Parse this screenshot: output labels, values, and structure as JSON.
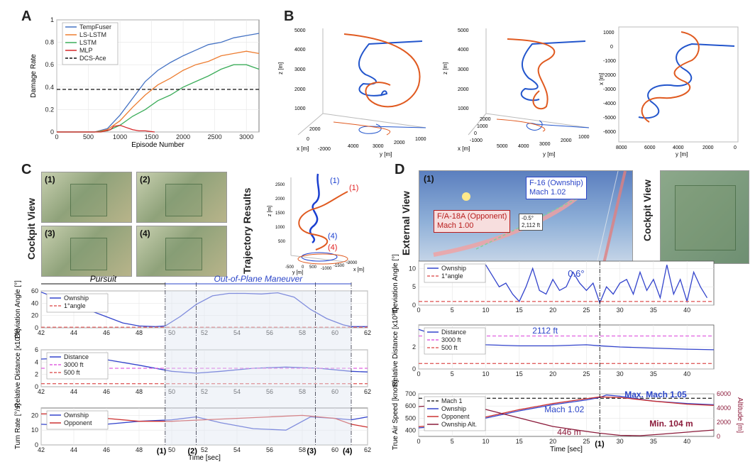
{
  "panels": {
    "a": "A",
    "b": "B",
    "c": "C",
    "d": "D"
  },
  "chart_data": [
    {
      "type": "line",
      "panel": "A",
      "xlabel": "Episode Number",
      "ylabel": "Damage Rate",
      "xlim": [
        0,
        3200
      ],
      "ylim": [
        0,
        1.0
      ],
      "xticks": [
        0,
        500,
        1000,
        1500,
        2000,
        2500,
        3000
      ],
      "yticks": [
        0,
        0.2,
        0.4,
        0.6,
        0.8,
        1.0
      ],
      "legend": "top-left",
      "series": [
        {
          "name": "TempFuser",
          "color": "#4472c4",
          "x": [
            0,
            600,
            800,
            1000,
            1200,
            1400,
            1600,
            1800,
            2000,
            2200,
            2400,
            2600,
            2800,
            3000,
            3200
          ],
          "values": [
            0,
            0,
            0.03,
            0.15,
            0.3,
            0.45,
            0.55,
            0.62,
            0.68,
            0.73,
            0.78,
            0.8,
            0.84,
            0.86,
            0.88
          ]
        },
        {
          "name": "LS-LSTM",
          "color": "#ed7d31",
          "x": [
            0,
            600,
            800,
            1000,
            1200,
            1400,
            1600,
            1800,
            2000,
            2200,
            2400,
            2600,
            2800,
            3000,
            3200
          ],
          "values": [
            0,
            0,
            0.02,
            0.1,
            0.22,
            0.33,
            0.42,
            0.48,
            0.55,
            0.6,
            0.63,
            0.68,
            0.7,
            0.72,
            0.7
          ]
        },
        {
          "name": "LSTM",
          "color": "#3cad5a",
          "x": [
            0,
            600,
            800,
            1000,
            1200,
            1400,
            1600,
            1800,
            2000,
            2200,
            2400,
            2600,
            2800,
            3000,
            3200
          ],
          "values": [
            0,
            0,
            0.01,
            0.06,
            0.14,
            0.2,
            0.28,
            0.33,
            0.4,
            0.45,
            0.5,
            0.56,
            0.6,
            0.6,
            0.56
          ]
        },
        {
          "name": "MLP",
          "color": "#d62728",
          "x": [
            0,
            700,
            850,
            900,
            1000,
            1100,
            1200,
            1300,
            1400,
            1550
          ],
          "values": [
            0,
            0,
            0.02,
            0.05,
            0.06,
            0.04,
            0.02,
            0.01,
            0.01,
            0
          ]
        },
        {
          "name": "DCS-Ace",
          "color": "#111111",
          "dashed": true,
          "x": [
            0,
            3200
          ],
          "values": [
            0.38,
            0.38
          ]
        }
      ]
    },
    {
      "type": "line",
      "panel": "C-top",
      "ylabel": "Deviation Angle [°]",
      "xlim": [
        42,
        62
      ],
      "ylim": [
        0,
        60
      ],
      "xticks": [
        42,
        44,
        46,
        48,
        50,
        52,
        54,
        56,
        58,
        60,
        62
      ],
      "yticks": [
        0,
        20,
        40,
        60
      ],
      "series": [
        {
          "name": "Ownship",
          "color": "#3344cc",
          "x": [
            42,
            43,
            44,
            45,
            46,
            47,
            48,
            49,
            49.6,
            50.5,
            51.5,
            52.5,
            53.5,
            54.5,
            55.5,
            56.5,
            57.5,
            58.5,
            59.5,
            60.5,
            61,
            62
          ],
          "values": [
            58,
            48,
            38,
            28,
            18,
            8,
            3,
            2,
            3,
            18,
            38,
            52,
            56,
            56,
            55,
            57,
            50,
            30,
            15,
            5,
            2,
            2
          ]
        },
        {
          "name": "1°angle",
          "color": "#e06060",
          "dashed": true,
          "x": [
            42,
            62
          ],
          "values": [
            1,
            1
          ]
        }
      ]
    },
    {
      "type": "line",
      "panel": "C-mid",
      "ylabel": "Relative Distance [x10³ft]",
      "xlim": [
        42,
        62
      ],
      "ylim": [
        0,
        6
      ],
      "xticks": [
        42,
        44,
        46,
        48,
        50,
        52,
        54,
        56,
        58,
        60,
        62
      ],
      "yticks": [
        0,
        2,
        4,
        6
      ],
      "series": [
        {
          "name": "Distance",
          "color": "#3344cc",
          "x": [
            42,
            44,
            46,
            48,
            50,
            51.5,
            53,
            55,
            57,
            59,
            61,
            62
          ],
          "values": [
            4.5,
            4.7,
            4.4,
            3.5,
            2.5,
            2.2,
            2.5,
            3.0,
            3.2,
            3.0,
            2.5,
            2.4
          ]
        },
        {
          "name": "3000 ft",
          "color": "#e060e0",
          "dashed": true,
          "x": [
            42,
            62
          ],
          "values": [
            3,
            3
          ]
        },
        {
          "name": "500 ft",
          "color": "#e06060",
          "dashed": true,
          "x": [
            42,
            62
          ],
          "values": [
            0.5,
            0.5
          ]
        }
      ]
    },
    {
      "type": "line",
      "panel": "C-bot",
      "ylabel": "Turn Rate [°/s]",
      "xlabel": "Time [sec]",
      "xlim": [
        42,
        62
      ],
      "ylim": [
        0,
        25
      ],
      "xticks": [
        42,
        44,
        46,
        48,
        50,
        52,
        54,
        56,
        58,
        60,
        62
      ],
      "yticks": [
        0,
        10,
        20
      ],
      "series": [
        {
          "name": "Ownship",
          "color": "#3344cc",
          "x": [
            42,
            44,
            46,
            48,
            50,
            51.5,
            53,
            55,
            57,
            58.5,
            60,
            61,
            62
          ],
          "values": [
            14,
            13,
            14,
            16,
            17,
            19,
            15,
            11,
            10,
            19,
            18,
            17,
            19
          ]
        },
        {
          "name": "Opponent",
          "color": "#cc3333",
          "x": [
            42,
            44,
            46,
            48,
            50,
            52,
            54,
            56,
            58,
            60,
            61,
            62
          ],
          "values": [
            21,
            21,
            18,
            16,
            16,
            17,
            18,
            19,
            20,
            18,
            14,
            12
          ]
        }
      ]
    },
    {
      "type": "line",
      "panel": "D-top",
      "ylabel": "Deviation Angle [°]",
      "xlim": [
        0,
        44
      ],
      "ylim": [
        0,
        12
      ],
      "xticks": [
        0,
        5,
        10,
        15,
        20,
        25,
        30,
        35,
        40
      ],
      "yticks": [
        0,
        5,
        10
      ],
      "series": [
        {
          "name": "Ownship",
          "color": "#3344cc",
          "x": [
            10,
            11,
            12,
            13,
            14,
            15,
            16,
            17,
            18,
            19,
            20,
            21,
            22,
            23,
            24,
            25,
            26,
            27,
            28,
            29,
            30,
            31,
            32,
            33,
            34,
            35,
            36,
            37,
            38,
            39,
            40,
            41,
            42,
            43
          ],
          "values": [
            11,
            8,
            5,
            6,
            3,
            1,
            5,
            10,
            4,
            3,
            7,
            4,
            5,
            9,
            6,
            4,
            6,
            0.6,
            5,
            3,
            6,
            7,
            3,
            9,
            4,
            7,
            2,
            11,
            3,
            7,
            1,
            9,
            5,
            2
          ]
        },
        {
          "name": "1°angle",
          "color": "#e06060",
          "dashed": true,
          "x": [
            0,
            44
          ],
          "values": [
            1,
            1
          ]
        }
      ]
    },
    {
      "type": "line",
      "panel": "D-mid",
      "ylabel": "Relative Distance [x10³ft]",
      "xlim": [
        0,
        44
      ],
      "ylim": [
        0,
        4
      ],
      "xticks": [
        0,
        5,
        10,
        15,
        20,
        25,
        30,
        35,
        40
      ],
      "yticks": [
        0,
        2
      ],
      "series": [
        {
          "name": "Distance",
          "color": "#3344cc",
          "x": [
            0,
            3,
            6,
            10,
            15,
            20,
            25,
            27,
            30,
            35,
            40,
            44
          ],
          "values": [
            3.6,
            3.0,
            2.5,
            2.2,
            2.1,
            2.1,
            2.2,
            2.112,
            2.0,
            1.9,
            1.8,
            1.75
          ]
        },
        {
          "name": "3000 ft",
          "color": "#e060e0",
          "dashed": true,
          "x": [
            0,
            44
          ],
          "values": [
            3,
            3
          ]
        },
        {
          "name": "500 ft",
          "color": "#e06060",
          "dashed": true,
          "x": [
            0,
            44
          ],
          "values": [
            0.5,
            0.5
          ]
        }
      ]
    },
    {
      "type": "line",
      "panel": "D-bot",
      "ylabel": "True Air Speed [knots]",
      "y2label": "Altitude [m]",
      "xlabel": "Time [sec]",
      "xlim": [
        0,
        44
      ],
      "ylim": [
        350,
        700
      ],
      "y2lim": [
        0,
        6000
      ],
      "xticks": [
        0,
        5,
        10,
        15,
        20,
        25,
        30,
        35,
        40
      ],
      "yticks": [
        400,
        500,
        600,
        700
      ],
      "y2ticks": [
        0,
        2000,
        4000,
        6000
      ],
      "series": [
        {
          "name": "Mach 1",
          "color": "#333333",
          "dashed": true,
          "x": [
            0,
            44
          ],
          "values": [
            663,
            663
          ]
        },
        {
          "name": "Ownship",
          "color": "#3344cc",
          "x": [
            0,
            5,
            10,
            15,
            20,
            25,
            27,
            28,
            30,
            35,
            40,
            44
          ],
          "values": [
            420,
            440,
            500,
            560,
            610,
            650,
            670,
            690,
            680,
            640,
            620,
            610
          ]
        },
        {
          "name": "Opponent",
          "color": "#cc3333",
          "x": [
            0,
            5,
            10,
            15,
            20,
            25,
            27,
            30,
            35,
            40,
            44
          ],
          "values": [
            430,
            450,
            510,
            570,
            620,
            660,
            675,
            670,
            640,
            615,
            605
          ]
        },
        {
          "name": "Ownship Alt.",
          "color": "#8b1a3a",
          "axis": "y2",
          "x": [
            0,
            5,
            10,
            15,
            20,
            25,
            27,
            30,
            33,
            36,
            40,
            44
          ],
          "values": [
            4200,
            4500,
            3800,
            2600,
            1400,
            700,
            446,
            150,
            104,
            300,
            600,
            900
          ]
        }
      ]
    }
  ],
  "labels": {
    "a_legend": [
      "TempFuser",
      "LS-LSTM",
      "LSTM",
      "MLP",
      "DCS-Ace"
    ],
    "c_cockpit_view": "Cockpit View",
    "c_traj": "Trajectory Results",
    "c_photo_nums": [
      "(1)",
      "(2)",
      "(3)",
      "(4)"
    ],
    "c_traj_labels": [
      "(1)",
      "(1)",
      "(4)",
      "(4)"
    ],
    "c_pursuit": "Pursuit",
    "c_oop": "Out-of-Plane Maneuver",
    "c_markers": [
      "(1)",
      "(2)",
      "(3)",
      "(4)"
    ],
    "d_external": "External View",
    "d_cockpit": "Cockpit View",
    "d_photo_num": "(1)",
    "d_f16": "F-16 (Ownship)",
    "d_f16_mach": "Mach 1.02",
    "d_fa18": "F/A-18A (Opponent)",
    "d_fa18_mach": "Mach 1.00",
    "d_box1": "-0.5°",
    "d_box2": "2,112 ft",
    "d_ann_06": "0.6°",
    "d_ann_2112": "2112 ft",
    "d_ann_maxmach": "Max. Mach 1.05",
    "d_ann_m102": "Mach 1.02",
    "d_ann_446": "446 m",
    "d_ann_min": "Min. 104 m",
    "d_marker": "(1)",
    "b_axes": {
      "z": "z [m]",
      "x": "x [m]",
      "y": "y [m]",
      "b1_z": [
        "1000",
        "2000",
        "3000",
        "4000",
        "5000"
      ],
      "b1_x": [
        "-2000",
        "0",
        "2000"
      ],
      "b1_y": [
        "4000",
        "3000",
        "2000",
        "1000"
      ],
      "b2_z": [
        "1000",
        "2000",
        "3000",
        "4000",
        "5000"
      ],
      "b2_x": [
        "-1000",
        "0",
        "1000",
        "2000"
      ],
      "b2_y": [
        "5000",
        "4000",
        "3000",
        "2000",
        "1000"
      ],
      "b3_x": [
        "1000",
        "0",
        "-1000",
        "-2000",
        "-3000",
        "-4000",
        "-5000",
        "-6000"
      ],
      "b3_y": [
        "8000",
        "6000",
        "4000",
        "2000",
        "0"
      ]
    },
    "c_traj_axes": {
      "z": "z [m]",
      "x": "x [m]",
      "y": "y [m]",
      "zt": [
        "500",
        "1000",
        "1500",
        "2000",
        "2500"
      ],
      "yt": [
        "-500",
        "0",
        "500"
      ],
      "xt": [
        "-1000",
        "-1500",
        "-2000"
      ]
    }
  }
}
